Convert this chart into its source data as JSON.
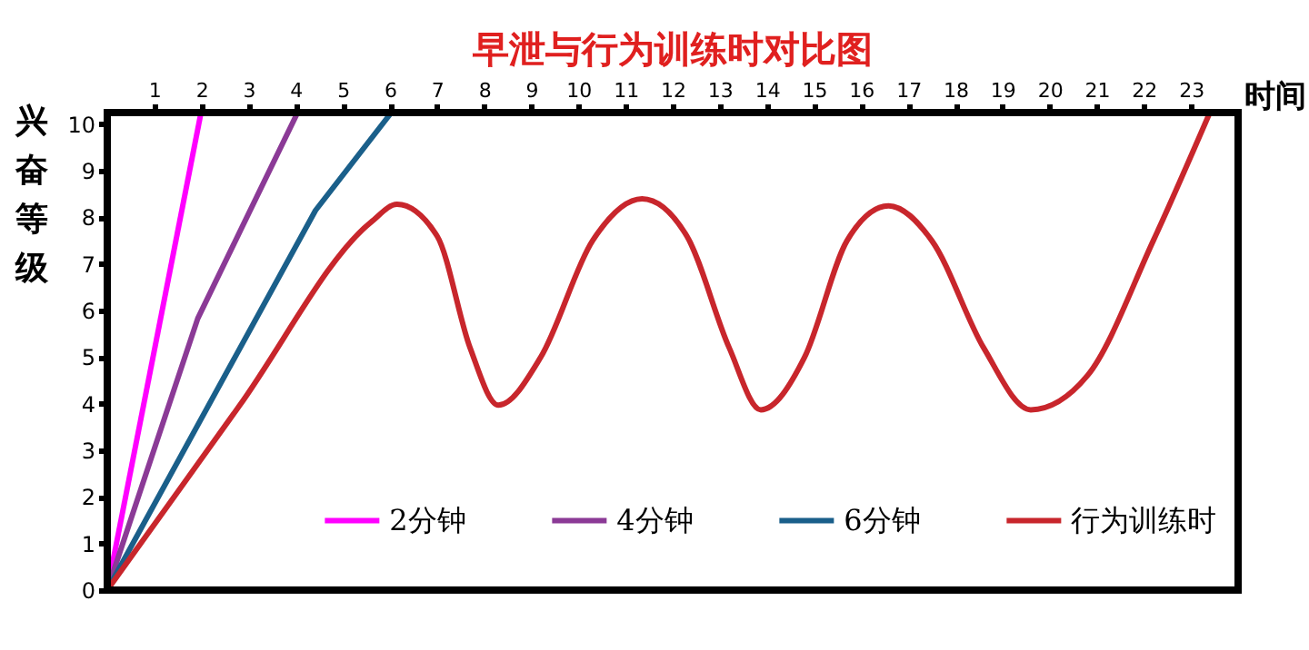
{
  "chart_data": {
    "type": "line",
    "title": "早泄与行为训练时对比图",
    "xlabel": "时间",
    "ylabel": "兴奋等级",
    "xlim": [
      0,
      24
    ],
    "ylim": [
      0,
      10.25
    ],
    "xticks": [
      1,
      2,
      3,
      4,
      5,
      6,
      7,
      8,
      9,
      10,
      11,
      12,
      13,
      14,
      15,
      16,
      17,
      18,
      19,
      20,
      21,
      22,
      23
    ],
    "yticks": [
      0,
      1,
      2,
      3,
      4,
      5,
      6,
      7,
      8,
      9,
      10
    ],
    "grid": false,
    "legend": "bottom",
    "marker": "none",
    "line_style": "solid",
    "series": [
      {
        "name": "2分钟",
        "color": "#ff00ff",
        "x": [
          0,
          1.99
        ],
        "values": [
          0,
          10.25
        ]
      },
      {
        "name": "4分钟",
        "color": "#8b3a96",
        "x": [
          0,
          1.92,
          4.04
        ],
        "values": [
          0,
          5.83,
          10.25
        ]
      },
      {
        "name": "6分钟",
        "color": "#1a5f8a",
        "x": [
          0,
          4.42,
          6.03
        ],
        "values": [
          0,
          8.15,
          10.25
        ]
      },
      {
        "name": "行为训练时",
        "color": "#c8262c",
        "x": [
          0,
          2.8,
          5.6,
          6.15,
          7.0,
          7.7,
          8.3,
          9.2,
          10.3,
          11.35,
          12.3,
          13.2,
          13.87,
          14.8,
          15.7,
          16.58,
          17.5,
          18.6,
          19.6,
          20.8,
          22.2,
          23.4
        ],
        "values": [
          0,
          3.95,
          7.9,
          8.28,
          7.6,
          5.2,
          3.97,
          5.0,
          7.5,
          8.4,
          7.6,
          5.2,
          3.87,
          5.0,
          7.5,
          8.25,
          7.5,
          5.2,
          3.87,
          4.6,
          7.5,
          10.25
        ]
      }
    ]
  }
}
